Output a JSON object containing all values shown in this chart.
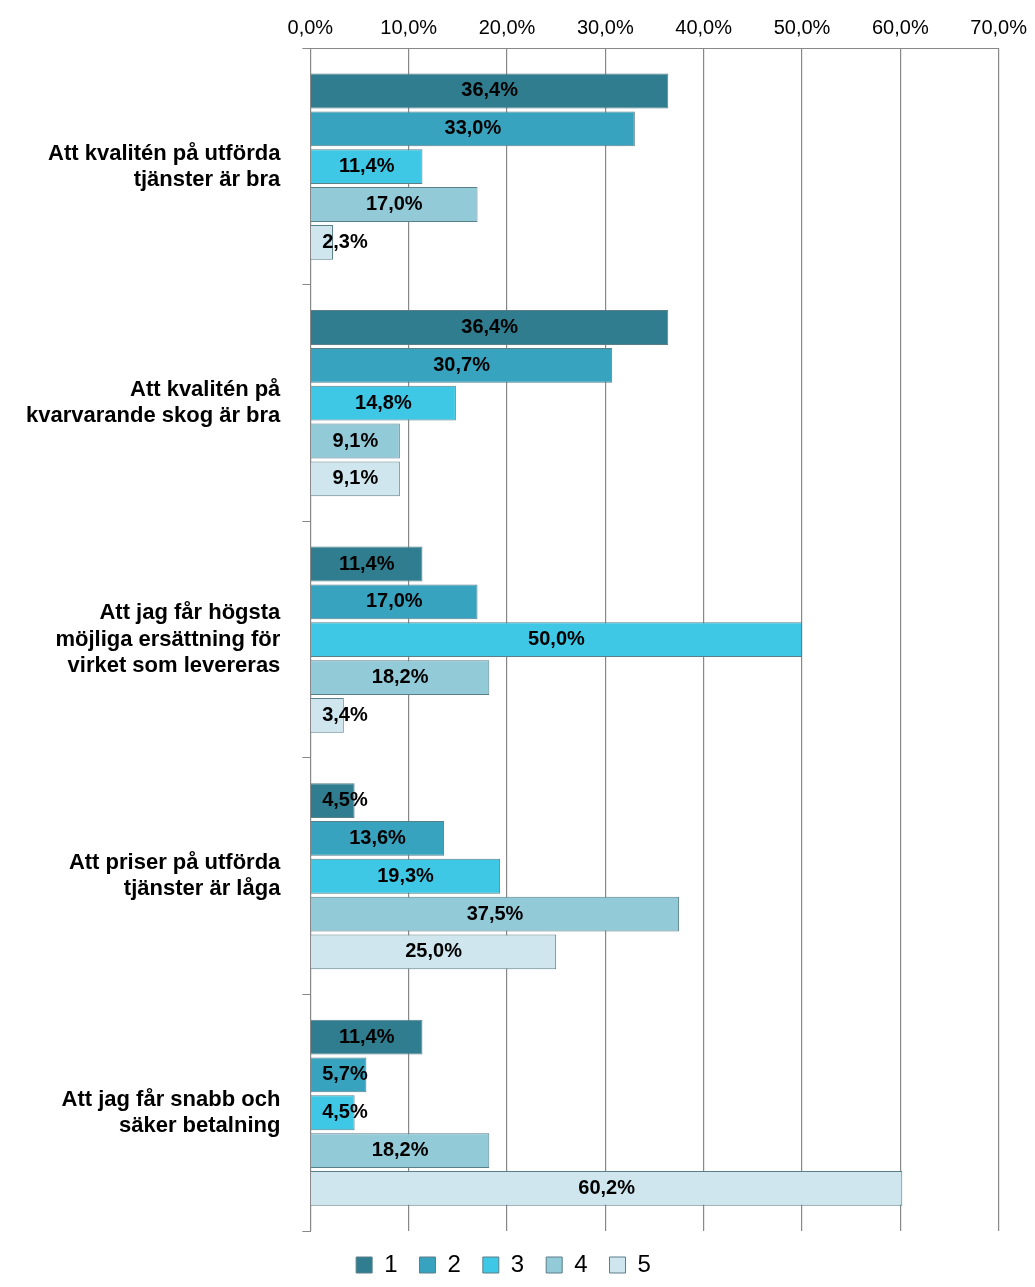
{
  "chart_data": {
    "type": "bar",
    "orientation": "horizontal",
    "categories": [
      "Att kvalitén på utförda tjänster är bra",
      "Att kvalitén på kvarvarande skog är bra",
      "Att jag får högsta möjliga ersättning för virket som levereras",
      "Att priser på utförda tjänster är låga",
      "Att jag får snabb och säker betalning"
    ],
    "series": [
      {
        "name": "1",
        "color": "#2f7d8f",
        "values": [
          36.4,
          36.4,
          11.4,
          4.5,
          11.4
        ],
        "value_labels": [
          "36,4%",
          "36,4%",
          "11,4%",
          "4,5%",
          "11,4%"
        ]
      },
      {
        "name": "2",
        "color": "#38a3bf",
        "values": [
          33.0,
          30.7,
          17.0,
          13.6,
          5.7
        ],
        "value_labels": [
          "33,0%",
          "30,7%",
          "17,0%",
          "13,6%",
          "5,7%"
        ]
      },
      {
        "name": "3",
        "color": "#3ec8e6",
        "values": [
          11.4,
          14.8,
          50.0,
          19.3,
          4.5
        ],
        "value_labels": [
          "11,4%",
          "14,8%",
          "50,0%",
          "19,3%",
          "4,5%"
        ]
      },
      {
        "name": "4",
        "color": "#93cad8",
        "values": [
          17.0,
          9.1,
          18.2,
          37.5,
          18.2
        ],
        "value_labels": [
          "17,0%",
          "9,1%",
          "18,2%",
          "37,5%",
          "18,2%"
        ]
      },
      {
        "name": "5",
        "color": "#cfe6ee",
        "values": [
          2.3,
          9.1,
          3.4,
          25.0,
          60.2
        ],
        "value_labels": [
          "2,3%",
          "9,1%",
          "3,4%",
          "25,0%",
          "60,2%"
        ]
      }
    ],
    "xlim": [
      0,
      70
    ],
    "xticks": [
      {
        "value": 0,
        "label": "0,0%"
      },
      {
        "value": 10,
        "label": "10,0%"
      },
      {
        "value": 20,
        "label": "20,0%"
      },
      {
        "value": 30,
        "label": "30,0%"
      },
      {
        "value": 40,
        "label": "40,0%"
      },
      {
        "value": 50,
        "label": "50,0%"
      },
      {
        "value": 60,
        "label": "60,0%"
      },
      {
        "value": 70,
        "label": "70,0%"
      }
    ],
    "grid": "x",
    "legend": "bottom"
  }
}
